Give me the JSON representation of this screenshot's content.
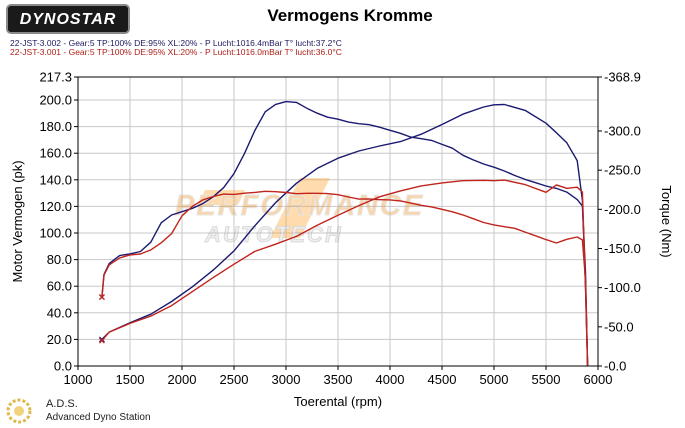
{
  "header": {
    "logo": "DYNOSTAR",
    "logo_sub": "...... ",
    "title": "Vermogens Kromme",
    "run1": "22-JST-3.002 - Gear:5 TP:100% DE:95% XL:20%   - P Lucht:1016.4mBar T° lucht:37.2°C",
    "run2": "22-JST-3.001 - Gear:5 TP:100% DE:95% XL:20%   - P Lucht:1016.0mBar T° lucht:36.0°C"
  },
  "footer": {
    "ads_name": "A.D.S.",
    "ads_sub": "Advanced Dyno Station"
  },
  "watermark": {
    "line1": "PERFORMANCE",
    "line2": "AUTOTECH"
  },
  "chart_data": {
    "type": "line",
    "title": "Vermogens Kromme",
    "xlabel": "Toerental (rpm)",
    "ylabel": "Motor Vermogen (pk)",
    "y2label": "Torque (Nm)",
    "xlim": [
      1000,
      6000
    ],
    "ylim": [
      0,
      217.3
    ],
    "y2lim": [
      0,
      368.9
    ],
    "x_ticks": [
      "1000",
      "1500",
      "2000",
      "2500",
      "3000",
      "3500",
      "4000",
      "4500",
      "5000",
      "5500",
      "6000"
    ],
    "y_ticks": [
      "0.0",
      "20.0",
      "40.0",
      "60.0",
      "80.0",
      "100.0",
      "120.0",
      "140.0",
      "160.0",
      "180.0",
      "200.0",
      "217.3"
    ],
    "y2_ticks": [
      "0.0",
      "50.0",
      "100.0",
      "150.0",
      "200.0",
      "250.0",
      "300.0",
      "368.9"
    ],
    "grid": true,
    "colors": {
      "run1": "#1a1a70",
      "run2": "#c0241c"
    },
    "series": [
      {
        "run": "22-JST-3.002",
        "quantity": "power",
        "axis": "y",
        "color": "#1a1a70",
        "x": [
          1230,
          1300,
          1500,
          1700,
          1900,
          2100,
          2300,
          2500,
          2700,
          2900,
          3100,
          3300,
          3500,
          3700,
          3900,
          4100,
          4300,
          4500,
          4700,
          4900,
          5000,
          5100,
          5300,
          5500,
          5600,
          5700,
          5800,
          5850,
          5880,
          5900
        ],
        "y": [
          20,
          26,
          33,
          39,
          48,
          59,
          72,
          87,
          106,
          123,
          137,
          148,
          156,
          162,
          166,
          169,
          174,
          181,
          189,
          195,
          197,
          197,
          192,
          182,
          175,
          168,
          155,
          125,
          60,
          0
        ]
      },
      {
        "run": "22-JST-3.002",
        "quantity": "torque",
        "axis": "y2",
        "color": "#1a1a70",
        "x": [
          1230,
          1250,
          1300,
          1400,
          1500,
          1600,
          1700,
          1800,
          1900,
          2000,
          2100,
          2200,
          2300,
          2400,
          2500,
          2600,
          2700,
          2800,
          2900,
          3000,
          3100,
          3200,
          3300,
          3400,
          3500,
          3600,
          3700,
          3800,
          3900,
          4000,
          4100,
          4200,
          4300,
          4400,
          4500,
          4600,
          4700,
          4800,
          4900,
          5000,
          5100,
          5200,
          5300,
          5400,
          5500,
          5600,
          5700,
          5800,
          5850,
          5880,
          5900
        ],
        "y": [
          88,
          117,
          130,
          140,
          143,
          147,
          159,
          183,
          192,
          196,
          201,
          208,
          217,
          228,
          245,
          270,
          300,
          325,
          335,
          338,
          336,
          328,
          322,
          318,
          316,
          312,
          309,
          307,
          304,
          301,
          298,
          293,
          290,
          287,
          282,
          278,
          270,
          264,
          258,
          253,
          248,
          243,
          239,
          235,
          230,
          226,
          221,
          212,
          205,
          120,
          0
        ]
      },
      {
        "run": "22-JST-3.001",
        "quantity": "power",
        "axis": "y",
        "color": "#c0241c",
        "x": [
          1230,
          1300,
          1500,
          1700,
          1900,
          2100,
          2300,
          2500,
          2700,
          2900,
          3100,
          3300,
          3500,
          3700,
          3900,
          4100,
          4300,
          4500,
          4700,
          4900,
          5000,
          5100,
          5300,
          5500,
          5600,
          5700,
          5800,
          5850,
          5880,
          5900
        ],
        "y": [
          19,
          25,
          32,
          38,
          46,
          56,
          66,
          76,
          86,
          92,
          98,
          106,
          113,
          120,
          127,
          132,
          136,
          138,
          139,
          139,
          139,
          140,
          137,
          131,
          136,
          133,
          134,
          131,
          60,
          0
        ]
      },
      {
        "run": "22-JST-3.001",
        "quantity": "torque",
        "axis": "y2",
        "color": "#c0241c",
        "x": [
          1230,
          1250,
          1300,
          1400,
          1500,
          1600,
          1700,
          1800,
          1900,
          2000,
          2100,
          2200,
          2300,
          2400,
          2500,
          2600,
          2700,
          2800,
          2900,
          3000,
          3100,
          3200,
          3300,
          3400,
          3500,
          3600,
          3700,
          3800,
          3900,
          4000,
          4100,
          4200,
          4300,
          4400,
          4500,
          4600,
          4700,
          4800,
          4900,
          5000,
          5100,
          5200,
          5300,
          5400,
          5500,
          5600,
          5700,
          5800,
          5850,
          5880,
          5900
        ],
        "y": [
          88,
          117,
          130,
          138,
          141,
          142,
          148,
          158,
          170,
          192,
          203,
          211,
          216,
          220,
          220,
          221,
          221,
          222,
          222,
          222,
          221,
          221,
          220,
          219,
          218,
          216,
          214,
          214,
          212,
          211,
          210,
          208,
          206,
          204,
          200,
          196,
          192,
          188,
          184,
          181,
          178,
          175,
          170,
          166,
          162,
          158,
          162,
          164,
          160,
          110,
          0
        ]
      }
    ]
  }
}
